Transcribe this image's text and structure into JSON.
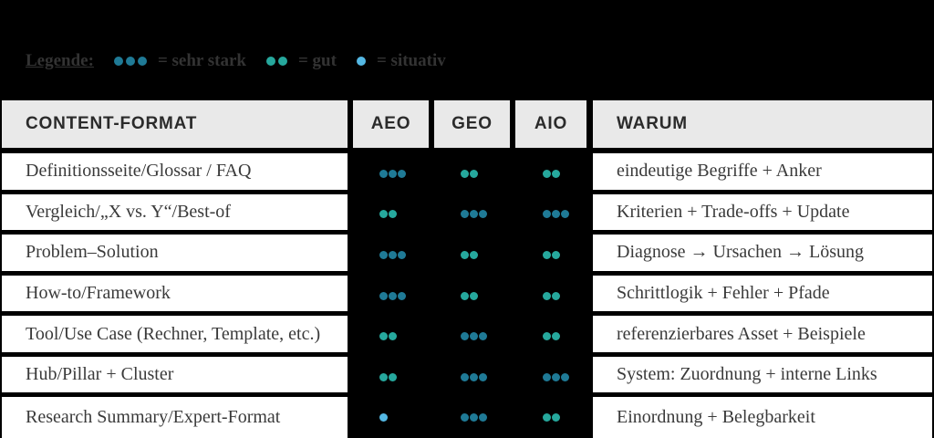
{
  "colors": {
    "background": "#000000",
    "header_bg": "#e9e9e9",
    "header_text": "#2b2b2b",
    "row_bg": "#ffffff",
    "row_text": "#3a3a3a",
    "legend_text": "#333333"
  },
  "dot_colors": {
    "3": "#1f7a96",
    "2": "#26a89d",
    "1": "#54b8e4"
  },
  "legend": {
    "label": "Legende:",
    "items": [
      {
        "level": "sehr-stark",
        "dots": 3,
        "text": "= sehr stark"
      },
      {
        "level": "gut",
        "dots": 2,
        "text": "= gut"
      },
      {
        "level": "situativ",
        "dots": 1,
        "text": "= situativ"
      }
    ]
  },
  "chart_data": {
    "type": "table",
    "title": "",
    "columns": [
      "CONTENT-FORMAT",
      "AEO",
      "GEO",
      "AIO",
      "WARUM"
    ],
    "rating_scale": {
      "3": "sehr stark",
      "2": "gut",
      "1": "situativ"
    },
    "legend_position": "top-left",
    "rows": [
      {
        "format": "Definitionsseite/Glossar / FAQ",
        "aeo": 3,
        "geo": 2,
        "aio": 2,
        "warum": "eindeutige Begriffe + Anker"
      },
      {
        "format": "Vergleich/„X vs. Y“/Best-of",
        "aeo": 2,
        "geo": 3,
        "aio": 3,
        "warum": "Kriterien + Trade-offs + Update"
      },
      {
        "format": "Problem–Solution",
        "aeo": 3,
        "geo": 2,
        "aio": 2,
        "warum": "Diagnose → Ursachen → Lösung"
      },
      {
        "format": "How-to/Framework",
        "aeo": 3,
        "geo": 2,
        "aio": 2,
        "warum": "Schrittlogik + Fehler + Pfade"
      },
      {
        "format": "Tool/Use Case (Rechner, Template, etc.)",
        "aeo": 2,
        "geo": 3,
        "aio": 2,
        "warum": "referenzierbares Asset + Beispiele"
      },
      {
        "format": "Hub/Pillar + Cluster",
        "aeo": 2,
        "geo": 3,
        "aio": 3,
        "warum": "System: Zuordnung + interne Links"
      },
      {
        "format": "Research Summary/Expert-Format",
        "aeo": 1,
        "geo": 3,
        "aio": 2,
        "warum": "Einordnung + Belegbarkeit"
      }
    ]
  }
}
